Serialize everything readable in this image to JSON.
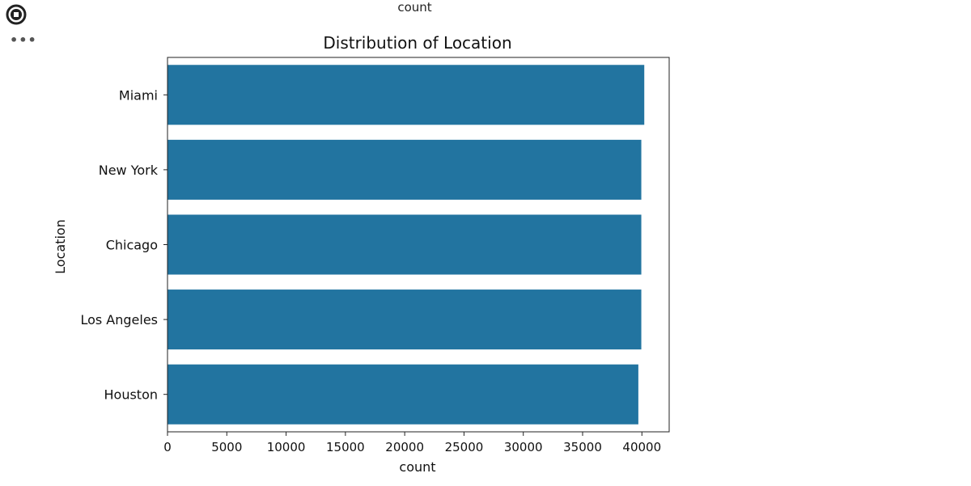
{
  "notebook": {
    "run_icon": "stop-circle-icon",
    "more_icon": "more-horizontal-icon",
    "more_label": "•••",
    "cropped_output_label": "count"
  },
  "chart_data": {
    "type": "bar",
    "orientation": "horizontal",
    "title": "Distribution of Location",
    "xlabel": "count",
    "ylabel": "Location",
    "categories": [
      "Miami",
      "New York",
      "Chicago",
      "Los Angeles",
      "Houston"
    ],
    "values": [
      40200,
      39950,
      39950,
      39950,
      39700
    ],
    "xlim": [
      0,
      42300
    ],
    "xticks": [
      0,
      5000,
      10000,
      15000,
      20000,
      25000,
      30000,
      35000,
      40000
    ],
    "grid": false,
    "bar_color": "#2274a0"
  }
}
